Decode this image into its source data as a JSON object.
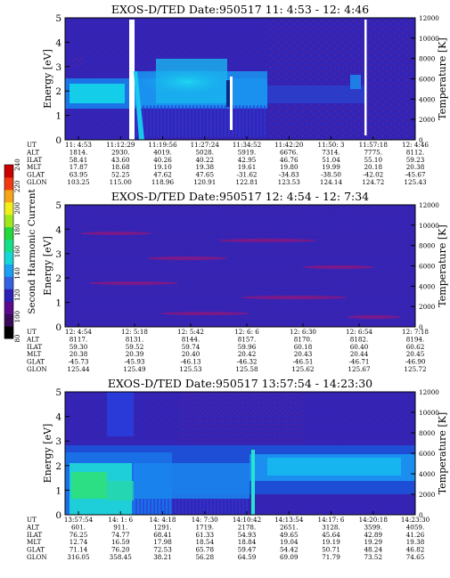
{
  "colorbar": {
    "label": "Second Harmonic Current",
    "ticks": [
      80,
      100,
      120,
      140,
      160,
      180,
      200,
      220,
      240
    ],
    "colors": [
      "#000000",
      "#3a0a5a",
      "#5a0a8a",
      "#2b1fb5",
      "#3560e0",
      "#1b9ff2",
      "#16d6d6",
      "#16e08a",
      "#22d83a",
      "#9fe81e",
      "#f0ef1c",
      "#f6a51a",
      "#f23a12",
      "#c80000"
    ]
  },
  "chart_data": [
    {
      "type": "heatmap",
      "title": "EXOS-D/TED   Date:950517  11: 4:53 -  12: 4:46",
      "ylabel": "Energy [eV]",
      "y2label": "Temperature [K]",
      "ylim": [
        0,
        5
      ],
      "y2lim": [
        0,
        12000
      ],
      "yticks": [
        0,
        1,
        2,
        3,
        4,
        5
      ],
      "y2ticks": [
        0,
        2000,
        4000,
        6000,
        8000,
        10000,
        12000
      ],
      "ephemeris": {
        "labels": [
          "UT",
          "ALT",
          "ILAT",
          "MLT",
          "GLAT",
          "GLON"
        ],
        "columns": [
          [
            "11: 4:53",
            "1814.",
            "58.41",
            "17.87",
            "63.95",
            "103.25"
          ],
          [
            "11:12:29",
            "2930.",
            "43.60",
            "18.68",
            "52.25",
            "115.00"
          ],
          [
            "11:19:56",
            "4019.",
            "40.26",
            "19.10",
            "47.62",
            "118.96"
          ],
          [
            "11:27:24",
            "5028.",
            "40.22",
            "19.38",
            "47.65",
            "120.91"
          ],
          [
            "11:34:52",
            "5919.",
            "42.95",
            "19.61",
            "-31.62",
            "122.81"
          ],
          [
            "11:42:20",
            "6676.",
            "46.76",
            "19.80",
            "-34.83",
            "123.53"
          ],
          [
            "11:50: 3",
            "7314.",
            "51.04",
            "19.99",
            "-38.50",
            "124.14"
          ],
          [
            "11:57:18",
            "7775.",
            "55.10",
            "20.18",
            "-42.02",
            "124.72"
          ],
          [
            "12: 4:46",
            "8112.",
            "59.23",
            "20.38",
            "-45.67",
            "125.43"
          ]
        ]
      }
    },
    {
      "type": "heatmap",
      "title": "EXOS-D/TED   Date:950517  12: 4:54 -  12: 7:34",
      "ylabel": "Energy [eV]",
      "y2label": "Temperature [K]",
      "ylim": [
        0,
        5
      ],
      "y2lim": [
        0,
        12000
      ],
      "yticks": [
        0,
        1,
        2,
        3,
        4,
        5
      ],
      "y2ticks": [
        0,
        2000,
        4000,
        6000,
        8000,
        10000,
        12000
      ],
      "ephemeris": {
        "labels": [
          "UT",
          "ALT",
          "ILAT",
          "MLT",
          "GLAT",
          "GLON"
        ],
        "columns": [
          [
            "12: 4:54",
            "8117.",
            "59.30",
            "20.38",
            "-45.73",
            "125.44"
          ],
          [
            "12: 5:18",
            "8131.",
            "59.52",
            "20.39",
            "-45.93",
            "125.49"
          ],
          [
            "12: 5:42",
            "8144.",
            "59.74",
            "20.40",
            "-46.13",
            "125.53"
          ],
          [
            "12: 6: 6",
            "8157.",
            "59.96",
            "20.42",
            "-46.32",
            "125.58"
          ],
          [
            "12: 6:30",
            "8170.",
            "60.18",
            "20.43",
            "-46.51",
            "125.62"
          ],
          [
            "12: 6:54",
            "8182.",
            "60.40",
            "20.44",
            "-46.71",
            "125.67"
          ],
          [
            "12: 7:18",
            "8194.",
            "60.62",
            "20.45",
            "-46.90",
            "125.72"
          ]
        ]
      }
    },
    {
      "type": "heatmap",
      "title": "EXOS-D/TED   Date:950517  13:57:54 -  14:23:30",
      "ylabel": "Energy [eV]",
      "y2label": "Temperature [K]",
      "ylim": [
        0,
        5
      ],
      "y2lim": [
        0,
        12000
      ],
      "yticks": [
        0,
        1,
        2,
        3,
        4,
        5
      ],
      "y2ticks": [
        0,
        2000,
        4000,
        6000,
        8000,
        10000,
        12000
      ],
      "ephemeris": {
        "labels": [
          "UT",
          "ALT",
          "ILAT",
          "MLT",
          "GLAT",
          "GLON"
        ],
        "columns": [
          [
            "13:57:54",
            "601.",
            "76.25",
            "12.74",
            "71.14",
            "316.05"
          ],
          [
            "14: 1: 6",
            "911.",
            "74.77",
            "16.59",
            "76.20",
            "358.45"
          ],
          [
            "14: 4:18",
            "1291.",
            "68.41",
            "17.98",
            "72.53",
            "38.21"
          ],
          [
            "14: 7:30",
            "1719.",
            "61.33",
            "18.54",
            "65.78",
            "56.28"
          ],
          [
            "14:10:42",
            "2178.",
            "54.93",
            "18.84",
            "59.47",
            "64.59"
          ],
          [
            "14:13:54",
            "2651.",
            "49.65",
            "19.04",
            "54.42",
            "69.09"
          ],
          [
            "14:17: 6",
            "3128.",
            "45.64",
            "19.19",
            "50.71",
            "71.79"
          ],
          [
            "14:20:18",
            "3599.",
            "42.89",
            "19.29",
            "48.24",
            "73.52"
          ],
          [
            "14:23:30",
            "4059.",
            "41.26",
            "19.38",
            "46.82",
            "74.65"
          ]
        ]
      }
    }
  ]
}
